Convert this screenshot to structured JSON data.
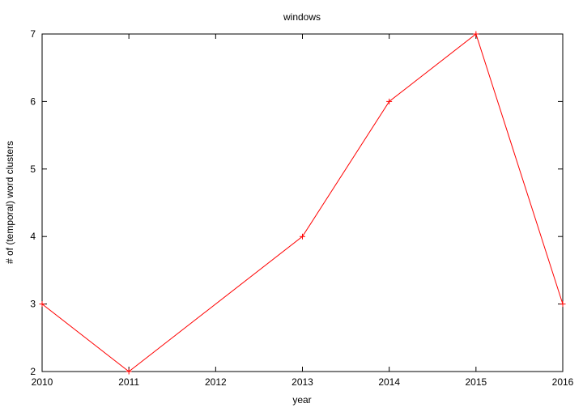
{
  "chart_data": {
    "type": "line",
    "title": "windows",
    "xlabel": "year",
    "ylabel": "# of (temporal) word clusters",
    "xlim": [
      2010,
      2016
    ],
    "ylim": [
      2,
      7
    ],
    "x_ticks": [
      2010,
      2011,
      2012,
      2013,
      2014,
      2015,
      2016
    ],
    "y_ticks": [
      2,
      3,
      4,
      5,
      6,
      7
    ],
    "grid": false,
    "series": [
      {
        "color": "#ff0000",
        "marker": "plus",
        "x": [
          2010,
          2011,
          2013,
          2014,
          2015,
          2016
        ],
        "y": [
          3,
          2,
          4,
          6,
          7,
          3
        ]
      }
    ]
  }
}
